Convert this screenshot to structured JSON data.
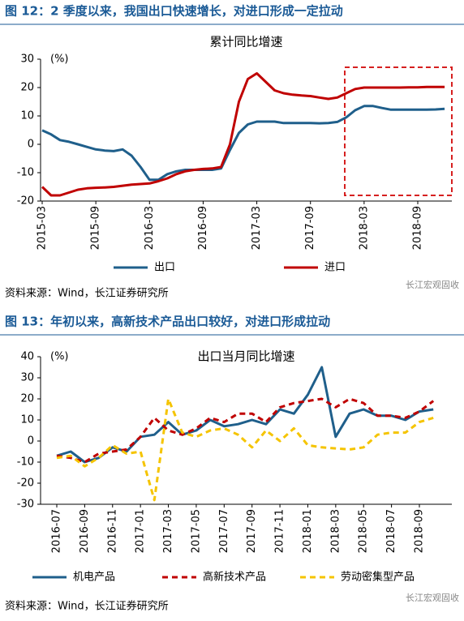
{
  "chart_data": [
    {
      "type": "line",
      "caption": "图 12：2 季度以来，我国出口快速增长，对进口形成一定拉动",
      "title": "累计同比增速",
      "y_label": "(%)",
      "categories": [
        "2015-03",
        null,
        null,
        null,
        null,
        null,
        "2015-09",
        null,
        null,
        null,
        null,
        null,
        "2016-03",
        null,
        null,
        null,
        null,
        null,
        "2016-09",
        null,
        null,
        null,
        null,
        null,
        "2017-03",
        null,
        null,
        null,
        null,
        null,
        "2017-09",
        null,
        null,
        null,
        null,
        null,
        "2018-03",
        null,
        null,
        null,
        null,
        null,
        "2018-09",
        null,
        null,
        null
      ],
      "series": [
        {
          "name": "出口",
          "color": "#1f5f8b",
          "dashed": false,
          "values": [
            4.9,
            3.5,
            1.5,
            0.9,
            0,
            -0.9,
            -1.8,
            -2.2,
            -2.4,
            -1.8,
            -4,
            -8,
            -12.5,
            -12.5,
            -10.5,
            -9.5,
            -9,
            -9,
            -9,
            -9,
            -8.5,
            -2,
            4,
            7,
            8,
            8,
            8,
            7.5,
            7.5,
            7.5,
            7.5,
            7.4,
            7.5,
            7.9,
            9.5,
            12,
            13.5,
            13.5,
            12.8,
            12.2,
            12.2,
            12.2,
            12.2,
            12.2,
            12.3,
            12.5
          ]
        },
        {
          "name": "进口",
          "color": "#c00000",
          "dashed": false,
          "values": [
            -15,
            -18,
            -18,
            -17,
            -16,
            -15.5,
            -15.3,
            -15.2,
            -15,
            -14.6,
            -14.2,
            -14,
            -13.8,
            -13,
            -12,
            -10.5,
            -9.5,
            -9,
            -8.7,
            -8.5,
            -8,
            0,
            15,
            23,
            25,
            22,
            19,
            18,
            17.5,
            17.2,
            17,
            16.5,
            16,
            16.5,
            18,
            19.5,
            20,
            20,
            20,
            20,
            20,
            20.1,
            20.1,
            20.2,
            20.2,
            20.2
          ]
        }
      ],
      "ylim": [
        -20,
        30
      ],
      "yticks": [
        -20,
        -10,
        0,
        10,
        20,
        30
      ],
      "source": "资料来源：Wind，长江证券研究所",
      "watermark": "长江宏观固收"
    },
    {
      "type": "line",
      "caption": "图 13：年初以来，高新技术产品出口较好，对进口形成拉动",
      "title": "出口当月同比增速",
      "y_label": "(%)",
      "categories": [
        "2016-07",
        null,
        "2016-09",
        null,
        "2016-11",
        null,
        "2017-01",
        null,
        "2017-03",
        null,
        "2017-05",
        null,
        "2017-07",
        null,
        "2017-09",
        null,
        "2017-11",
        null,
        "2018-01",
        null,
        "2018-03",
        null,
        "2018-05",
        null,
        "2018-07",
        null,
        "2018-09",
        null
      ],
      "series": [
        {
          "name": "机电产品",
          "color": "#1f5f8b",
          "dashed": false,
          "values": [
            -7,
            -5,
            -10,
            -8,
            -3,
            -5,
            2,
            3,
            9,
            3,
            5,
            10,
            7,
            8,
            10,
            8,
            15,
            13,
            22,
            35,
            2,
            13,
            15,
            12,
            12,
            10,
            14,
            15
          ]
        },
        {
          "name": "高新技术产品",
          "color": "#c00000",
          "dashed": true,
          "values": [
            -7,
            -8,
            -10,
            -6,
            -5,
            -4,
            2,
            11,
            5,
            3,
            6,
            11,
            9,
            13,
            13,
            9,
            16,
            18,
            19,
            20,
            16,
            20,
            18,
            12,
            12,
            11,
            14,
            19
          ]
        },
        {
          "name": "劳动密集型产品",
          "color": "#f5c400",
          "dashed": true,
          "values": [
            -8,
            -7,
            -12,
            -8,
            -2,
            -6,
            -5,
            -28,
            20,
            4,
            2,
            5,
            6,
            3,
            -3,
            5,
            0,
            6,
            -2,
            -3,
            -3.5,
            -4,
            -3,
            3,
            4,
            4,
            9,
            11
          ]
        }
      ],
      "ylim": [
        -30,
        40
      ],
      "yticks": [
        -30,
        -20,
        -10,
        0,
        10,
        20,
        30,
        40
      ],
      "source": "资料来源：Wind，长江证券研究所",
      "watermark": "长江宏观固收"
    }
  ]
}
